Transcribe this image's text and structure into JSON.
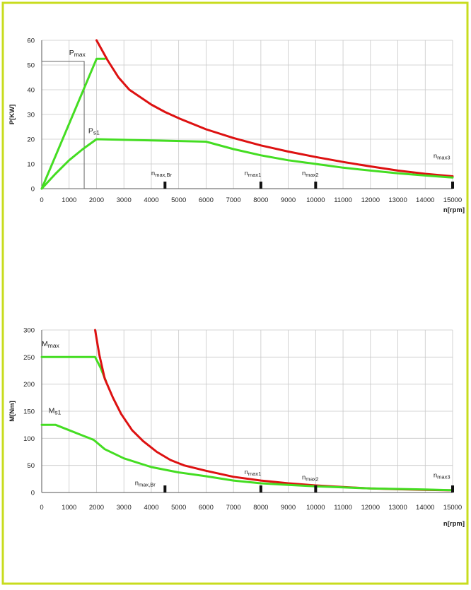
{
  "chart_data": [
    {
      "type": "line",
      "title": "",
      "xlabel": "n[rpm]",
      "ylabel": "P[KW]",
      "xlim": [
        0,
        15000
      ],
      "ylim": [
        0,
        60
      ],
      "x_ticks": [
        0,
        1000,
        2000,
        3000,
        4000,
        5000,
        6000,
        7000,
        8000,
        9000,
        10000,
        11000,
        12000,
        13000,
        14000,
        15000
      ],
      "y_ticks": [
        0,
        10,
        20,
        30,
        40,
        50,
        60
      ],
      "grid": true,
      "series": [
        {
          "name": "Pmax",
          "color": "#44dd22",
          "points": [
            [
              0,
              0
            ],
            [
              2000,
              52.5
            ],
            [
              2300,
              52.5
            ]
          ]
        },
        {
          "name": "",
          "color": "#dd1111",
          "points": [
            [
              2000,
              60
            ],
            [
              2400,
              52
            ],
            [
              2800,
              45
            ],
            [
              3200,
              40
            ],
            [
              3600,
              37
            ],
            [
              4000,
              34
            ],
            [
              4500,
              31
            ],
            [
              5000,
              28.5
            ],
            [
              6000,
              24
            ],
            [
              7000,
              20.5
            ],
            [
              8000,
              17.5
            ],
            [
              9000,
              15
            ],
            [
              10000,
              12.8
            ],
            [
              11000,
              10.8
            ],
            [
              12000,
              9
            ],
            [
              13000,
              7.3
            ],
            [
              14000,
              6
            ],
            [
              15000,
              5
            ]
          ]
        },
        {
          "name": "Ps1",
          "color": "#44dd22",
          "points": [
            [
              0,
              0
            ],
            [
              500,
              6
            ],
            [
              1000,
              11.5
            ],
            [
              1500,
              16
            ],
            [
              2000,
              20
            ],
            [
              6000,
              19
            ],
            [
              7000,
              16
            ],
            [
              8000,
              13.5
            ],
            [
              9000,
              11.5
            ],
            [
              10000,
              10
            ],
            [
              11000,
              8.5
            ],
            [
              12000,
              7.3
            ],
            [
              13000,
              6.2
            ],
            [
              14000,
              5.3
            ],
            [
              15000,
              4.5
            ]
          ]
        }
      ],
      "rect": {
        "x0": 0,
        "x1": 1550,
        "y0": 0,
        "y1": 51.5
      },
      "annotations": [
        {
          "base": "P",
          "sub": "max",
          "x": 1000,
          "y": 54
        },
        {
          "base": "P",
          "sub": "s1",
          "x": 1700,
          "y": 22.5
        }
      ],
      "markers": [
        {
          "base": "n",
          "sub": "max,Br",
          "x": 4500,
          "label_x": 4000,
          "label_y": 5.5
        },
        {
          "base": "n",
          "sub": "max1",
          "x": 8000,
          "label_x": 7400,
          "label_y": 5.5
        },
        {
          "base": "n",
          "sub": "max2",
          "x": 10000,
          "label_x": 9500,
          "label_y": 5.5
        },
        {
          "base": "n",
          "sub": "max3",
          "x": 15000,
          "label_x": 14300,
          "label_y": 12.5
        }
      ]
    },
    {
      "type": "line",
      "title": "",
      "xlabel": "n[rpm]",
      "ylabel": "M[Nm]",
      "xlim": [
        0,
        15000
      ],
      "ylim": [
        0,
        300
      ],
      "x_ticks": [
        0,
        1000,
        2000,
        3000,
        4000,
        5000,
        6000,
        7000,
        8000,
        9000,
        10000,
        11000,
        12000,
        13000,
        14000,
        15000
      ],
      "y_ticks": [
        0,
        50,
        100,
        150,
        200,
        250,
        300
      ],
      "grid": true,
      "series": [
        {
          "name": "Mmax",
          "color": "#44dd22",
          "points": [
            [
              0,
              250
            ],
            [
              1950,
              250
            ],
            [
              2150,
              230
            ],
            [
              2350,
              205
            ]
          ]
        },
        {
          "name": "",
          "color": "#dd1111",
          "points": [
            [
              1950,
              300
            ],
            [
              2100,
              255
            ],
            [
              2300,
              210
            ],
            [
              2600,
              175
            ],
            [
              2900,
              145
            ],
            [
              3300,
              115
            ],
            [
              3700,
              95
            ],
            [
              4200,
              75
            ],
            [
              4700,
              60
            ],
            [
              5200,
              50
            ],
            [
              6000,
              40
            ],
            [
              7000,
              29
            ],
            [
              8000,
              22
            ],
            [
              9000,
              17
            ],
            [
              10000,
              13
            ],
            [
              11000,
              10
            ],
            [
              12000,
              7.5
            ],
            [
              13000,
              6
            ],
            [
              14000,
              5
            ],
            [
              15000,
              4
            ]
          ]
        },
        {
          "name": "Ms1",
          "color": "#44dd22",
          "points": [
            [
              0,
              125
            ],
            [
              500,
              125
            ],
            [
              1000,
              115
            ],
            [
              1500,
              105
            ],
            [
              1900,
              97
            ],
            [
              2300,
              80
            ],
            [
              3000,
              63
            ],
            [
              4000,
              47
            ],
            [
              5000,
              37
            ],
            [
              6000,
              30
            ],
            [
              7000,
              22
            ],
            [
              8000,
              17
            ],
            [
              9000,
              14
            ],
            [
              10000,
              11.5
            ],
            [
              11000,
              9.5
            ],
            [
              12000,
              7.5
            ],
            [
              13000,
              6.5
            ],
            [
              14000,
              5.5
            ],
            [
              15000,
              4
            ]
          ]
        }
      ],
      "annotations": [
        {
          "base": "M",
          "sub": "max",
          "x": 0,
          "y": 270
        },
        {
          "base": "M",
          "sub": "s1",
          "x": 250,
          "y": 147
        }
      ],
      "markers": [
        {
          "base": "n",
          "sub": "max,Br",
          "x": 4500,
          "label_x": 3400,
          "label_y": 14
        },
        {
          "base": "n",
          "sub": "max1",
          "x": 8000,
          "label_x": 7400,
          "label_y": 34
        },
        {
          "base": "n",
          "sub": "max2",
          "x": 10000,
          "label_x": 9500,
          "label_y": 24
        },
        {
          "base": "n",
          "sub": "max3",
          "x": 15000,
          "label_x": 14300,
          "label_y": 28
        }
      ]
    }
  ]
}
